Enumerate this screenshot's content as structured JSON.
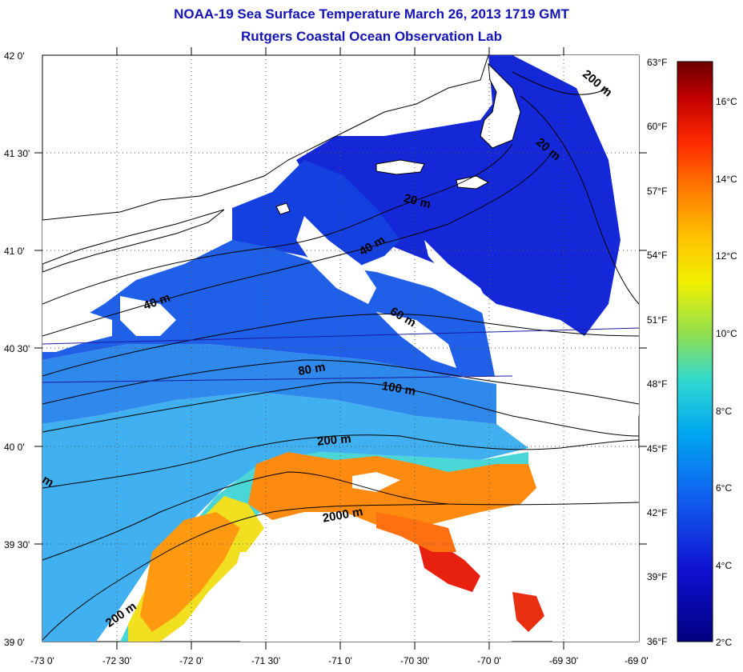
{
  "header": {
    "title": "NOAA-19 Sea Surface Temperature March 26, 2013 1719 GMT",
    "subtitle": "Rutgers Coastal Ocean Observation Lab"
  },
  "axes": {
    "lat_labels": [
      "42 0'",
      "41 30'",
      "41 0'",
      "40 30'",
      "40 0'",
      "39 30'",
      "39 0'"
    ],
    "lon_labels": [
      "-73 0'",
      "-72 30'",
      "-72 0'",
      "-71 30'",
      "-71 0'",
      "-70 30'",
      "-70 0'",
      "-69 30'",
      "-69 0'"
    ]
  },
  "colorbar": {
    "f_labels": [
      "63°F",
      "60°F",
      "57°F",
      "54°F",
      "51°F",
      "48°F",
      "45°F",
      "42°F",
      "39°F",
      "36°F"
    ],
    "c_labels": [
      "16°C",
      "14°C",
      "12°C",
      "10°C",
      "8°C",
      "6°C",
      "4°C",
      "2°C"
    ],
    "colors": [
      "#6b0000",
      "#c00000",
      "#ff2a00",
      "#ff7a00",
      "#ffc000",
      "#f0f000",
      "#90e050",
      "#30d8d0",
      "#00a8f0",
      "#1060f0",
      "#1010d0",
      "#000080"
    ]
  },
  "isobaths": [
    "200 m",
    "20 m",
    "20 m",
    "40 m",
    "40 m",
    "60 m",
    "80 m",
    "100 m",
    "200 m",
    "2000 m",
    "200 m",
    "m"
  ]
}
